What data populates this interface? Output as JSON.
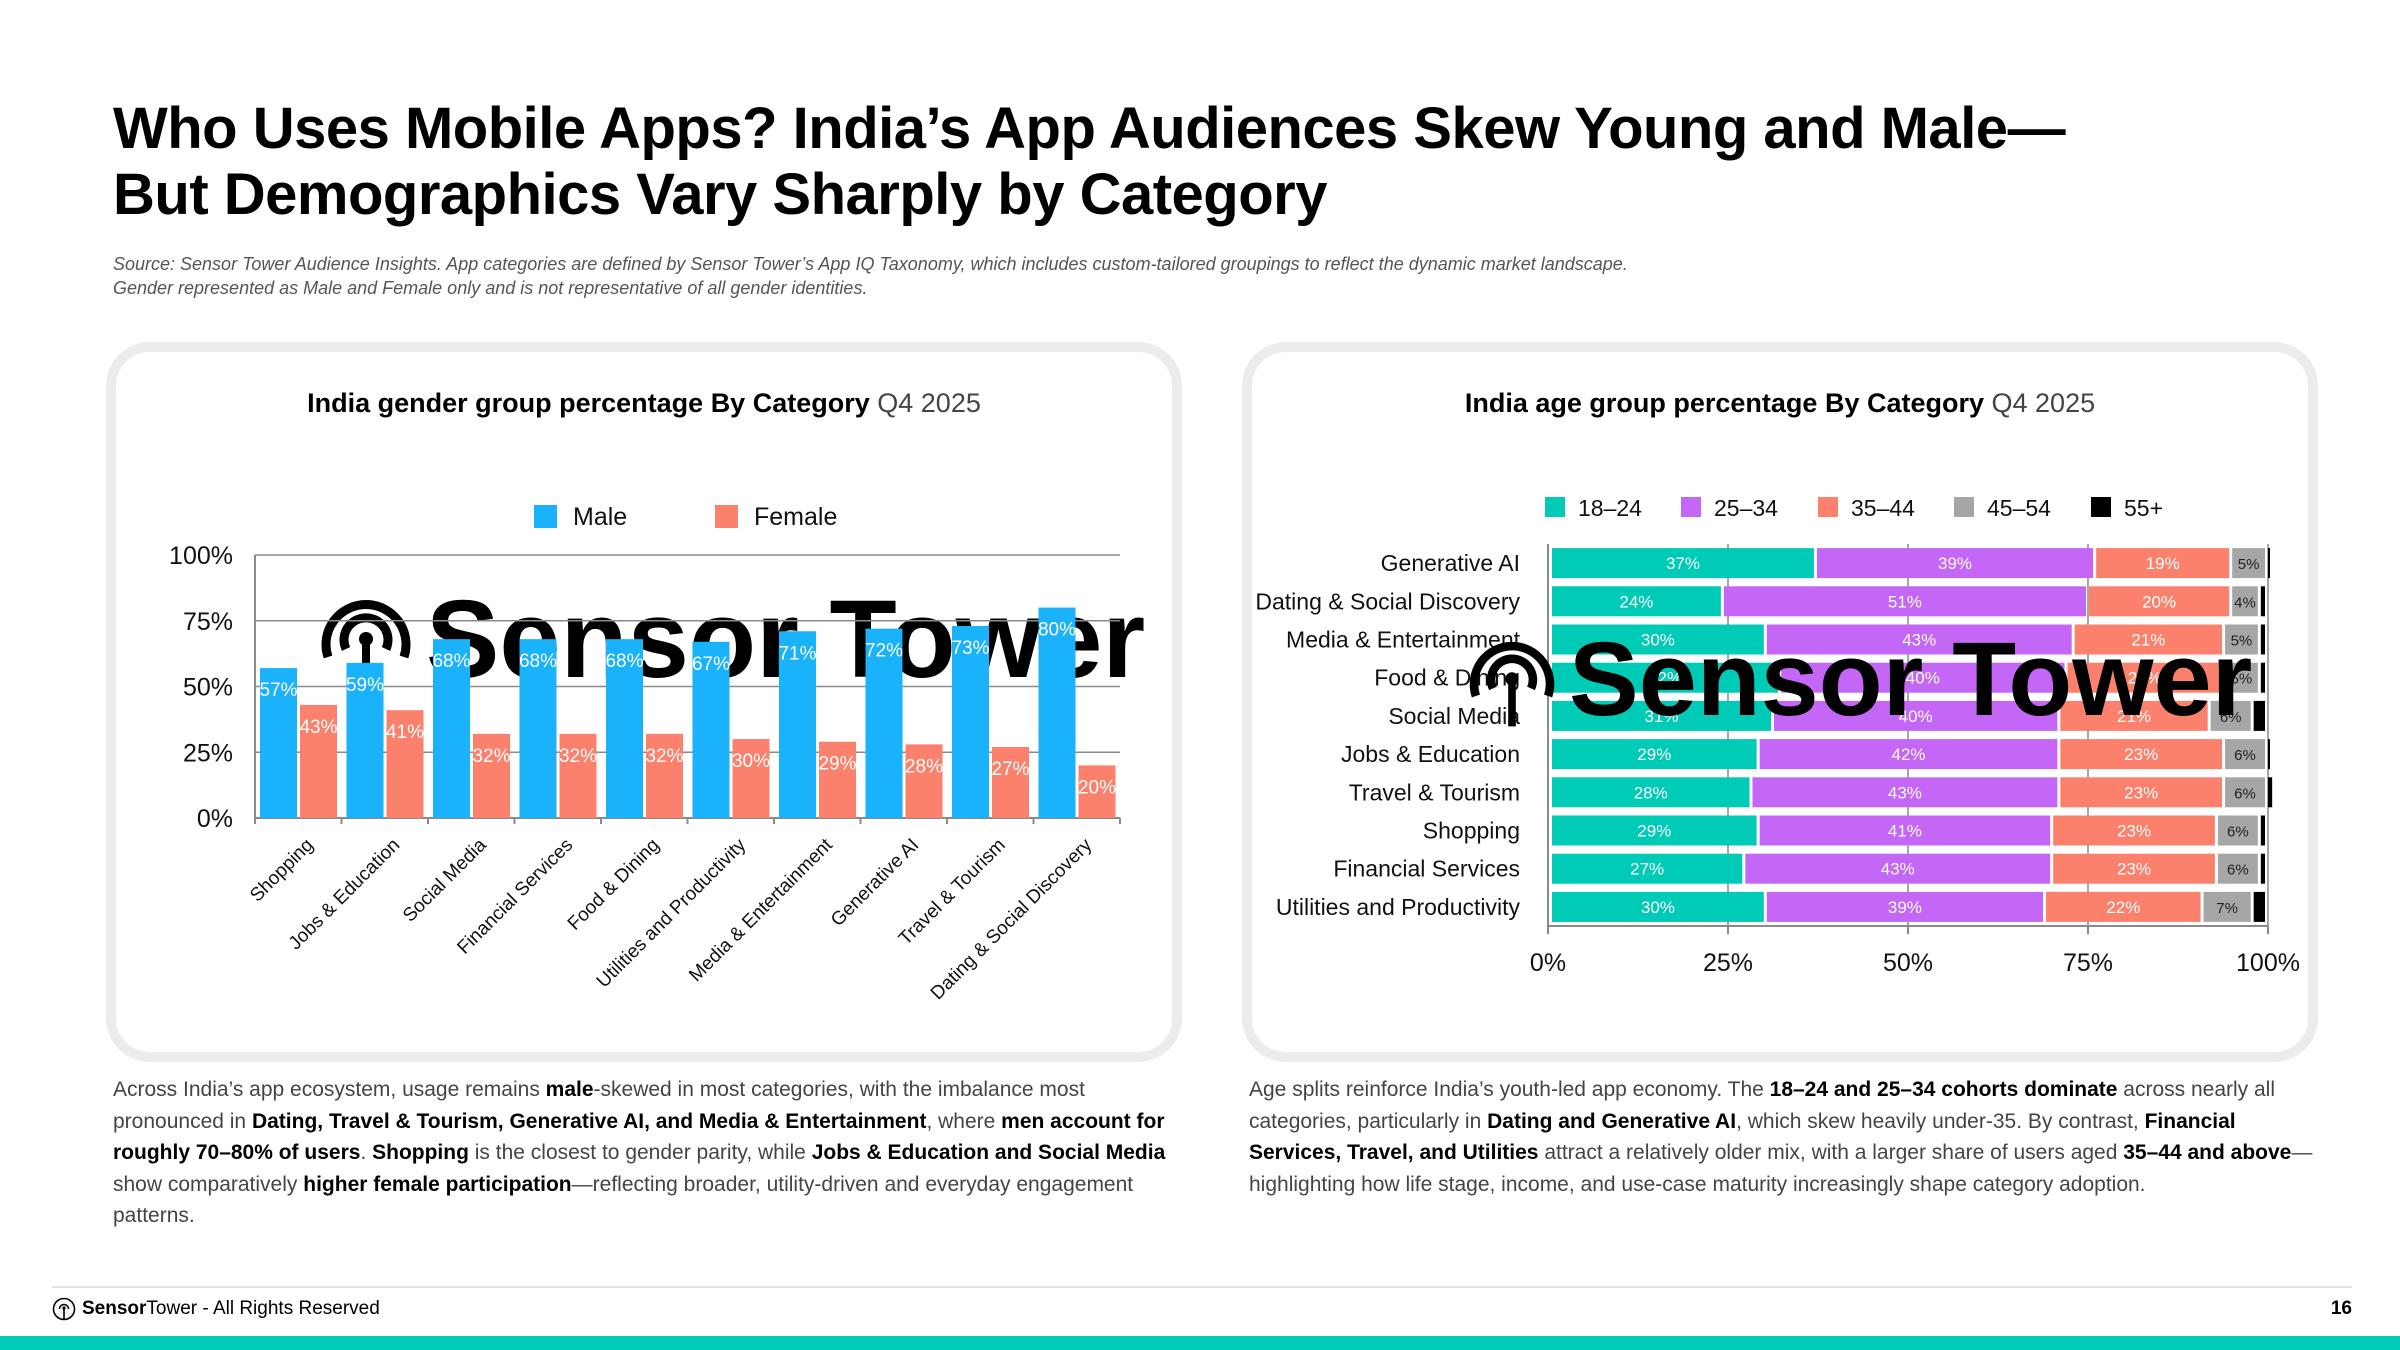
{
  "page": {
    "title_line1": "Who Uses Mobile Apps? India’s App Audiences Skew Young and Male—",
    "title_line2": "But Demographics Vary Sharply by Category",
    "source_line1": "Source: Sensor Tower Audience Insights. App categories are defined by Sensor Tower’s App IQ Taxonomy, which includes custom-tailored groupings to reflect the dynamic market landscape.",
    "source_line2": "Gender represented as Male and Female only and is not representative of all gender identities.",
    "watermark": "Sensor Tower"
  },
  "left_card": {
    "title_bold": "India gender group percentage By Category",
    "title_period": "Q4 2025"
  },
  "right_card": {
    "title_bold": "India  age group percentage By Category",
    "title_period": "Q4 2025"
  },
  "chart_data": [
    {
      "type": "bar",
      "title": "India gender group percentage By Category Q4 2025",
      "xlabel": "",
      "ylabel": "",
      "ylim": [
        0,
        100
      ],
      "yticks": [
        "0%",
        "25%",
        "50%",
        "75%",
        "100%"
      ],
      "grid": true,
      "legend_position": "top-center",
      "categories": [
        "Shopping",
        "Jobs & Education",
        "Social Media",
        "Financial Services",
        "Food & Dining",
        "Utilities and Productivity",
        "Media & Entertainment",
        "Generative AI",
        "Travel & Tourism",
        "Dating & Social Discovery"
      ],
      "series": [
        {
          "name": "Male",
          "color": "#1ab2fb",
          "values": [
            57,
            59,
            68,
            68,
            68,
            67,
            71,
            72,
            73,
            80
          ]
        },
        {
          "name": "Female",
          "color": "#fb816c",
          "values": [
            43,
            41,
            32,
            32,
            32,
            30,
            29,
            28,
            27,
            20
          ]
        }
      ]
    },
    {
      "type": "bar",
      "orientation": "horizontal-stacked",
      "title": "India age group percentage By Category Q4 2025",
      "xlim": [
        0,
        100
      ],
      "xticks": [
        "0%",
        "25%",
        "50%",
        "75%",
        "100%"
      ],
      "grid": true,
      "legend_position": "top-center",
      "categories": [
        "Generative AI",
        "Dating & Social Discovery",
        "Media & Entertainment",
        "Food & Dining",
        "Social Media",
        "Jobs & Education",
        "Travel & Tourism",
        "Shopping",
        "Financial Services",
        "Utilities and Productivity"
      ],
      "series": [
        {
          "name": "18–24",
          "color": "#00cbb7",
          "label_color": "#ffffff",
          "values": [
            37,
            24,
            30,
            32,
            31,
            29,
            28,
            29,
            27,
            30
          ]
        },
        {
          "name": "25–34",
          "color": "#c466f6",
          "label_color": "#ffffff",
          "values": [
            39,
            51,
            43,
            40,
            40,
            42,
            43,
            41,
            43,
            39
          ]
        },
        {
          "name": "35–44",
          "color": "#fb816c",
          "label_color": "#ffffff",
          "values": [
            19,
            20,
            21,
            22,
            21,
            23,
            23,
            23,
            23,
            22
          ]
        },
        {
          "name": "45–54",
          "color": "#a6a6a6",
          "label_color": "#222222",
          "values": [
            5,
            4,
            5,
            5,
            6,
            6,
            6,
            6,
            6,
            7
          ]
        },
        {
          "name": "55+",
          "color": "#000000",
          "label_color": "#ffffff",
          "values": [
            0.4,
            1,
            1,
            1,
            2,
            0.4,
            1,
            1,
            1,
            2
          ]
        }
      ]
    }
  ],
  "body_left": [
    {
      "t": "Across India’s app ecosystem, usage remains ",
      "b": false
    },
    {
      "t": "male",
      "b": true
    },
    {
      "t": "-skewed in most categories, with the imbalance most pronounced in ",
      "b": false
    },
    {
      "t": "Dating, Travel & Tourism, Generative AI, and Media & Entertainment",
      "b": true
    },
    {
      "t": ", where ",
      "b": false
    },
    {
      "t": "men account for roughly 70–80% of users",
      "b": true
    },
    {
      "t": ". ",
      "b": false
    },
    {
      "t": "Shopping",
      "b": true
    },
    {
      "t": " is the closest to gender parity, while ",
      "b": false
    },
    {
      "t": "Jobs & Education and Social Media",
      "b": true
    },
    {
      "t": " show comparatively ",
      "b": false
    },
    {
      "t": "higher female participation",
      "b": true
    },
    {
      "t": "—reflecting broader, utility-driven and everyday engagement patterns.",
      "b": false
    }
  ],
  "body_right": [
    {
      "t": "Age splits reinforce India’s youth-led app economy. The ",
      "b": false
    },
    {
      "t": "18–24 and 25–34 cohorts dominate",
      "b": true
    },
    {
      "t": " across nearly all categories, particularly in ",
      "b": false
    },
    {
      "t": "Dating and Generative AI",
      "b": true
    },
    {
      "t": ", which skew heavily under-35. By contrast, ",
      "b": false
    },
    {
      "t": "Financial Services, Travel, and Utilities",
      "b": true
    },
    {
      "t": " attract a relatively older mix, with a larger share of users aged ",
      "b": false
    },
    {
      "t": "35–44 and above",
      "b": true
    },
    {
      "t": "—highlighting how life stage, income, and use-case maturity increasingly shape category adoption.",
      "b": false
    }
  ],
  "footer": {
    "brand_bold": "Sensor",
    "brand_regular": "Tower",
    "rights": " - All Rights Reserved",
    "page_number": "16"
  }
}
